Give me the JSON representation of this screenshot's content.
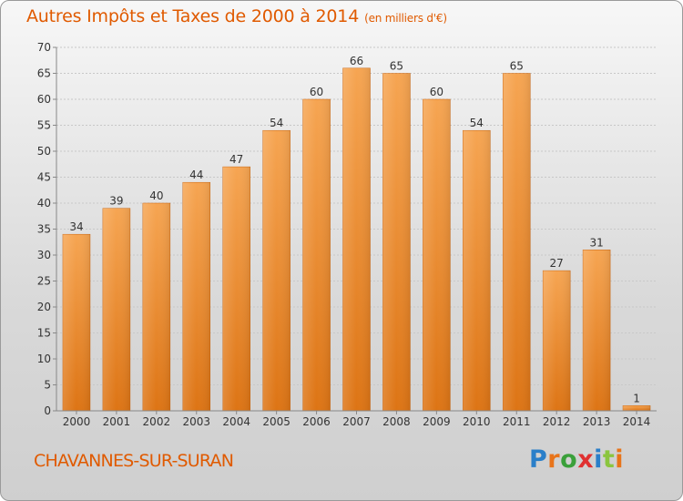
{
  "title": "Autres Impôts et Taxes de 2000 à 2014",
  "title_unit": "(en milliers d'€)",
  "commune": "CHAVANNES-SUR-SURAN",
  "logo": {
    "letters": [
      "P",
      "r",
      "o",
      "x",
      "i",
      "t",
      "i"
    ],
    "colors": [
      "#2a7fc9",
      "#e8741a",
      "#3aa03a",
      "#e03030",
      "#2a7fc9",
      "#8bc53f",
      "#e8741a"
    ]
  },
  "chart_data": {
    "type": "bar",
    "categories": [
      "2000",
      "2001",
      "2002",
      "2003",
      "2004",
      "2005",
      "2006",
      "2007",
      "2008",
      "2009",
      "2010",
      "2011",
      "2012",
      "2013",
      "2014"
    ],
    "values": [
      34,
      39,
      40,
      44,
      47,
      54,
      60,
      66,
      65,
      60,
      54,
      65,
      27,
      31,
      1
    ],
    "ylim": [
      0,
      70
    ],
    "yticks": [
      0,
      5,
      10,
      15,
      20,
      25,
      30,
      35,
      40,
      45,
      50,
      55,
      60,
      65,
      70
    ],
    "grid": true,
    "bar_color_top": "#f6a552",
    "bar_color_bottom": "#dd7414"
  }
}
